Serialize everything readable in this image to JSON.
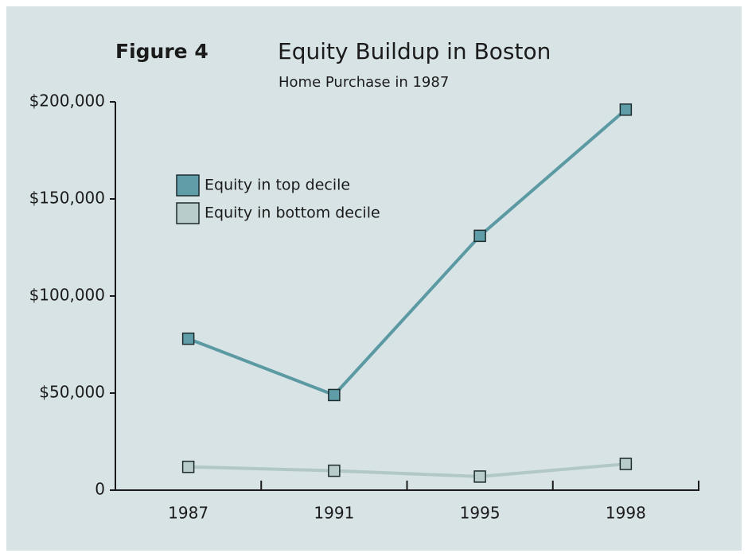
{
  "chart_data": {
    "type": "line",
    "figure_label": "Figure 4",
    "title": "Equity Buildup in Boston",
    "subtitle": "Home Purchase in 1987",
    "categories": [
      "1987",
      "1991",
      "1995",
      "1998"
    ],
    "series": [
      {
        "name": "Equity in top decile",
        "color": "#5f9ea8",
        "line_color": "#5b99a3",
        "values": [
          78000,
          49000,
          131000,
          196000
        ]
      },
      {
        "name": "Equity in bottom decile",
        "color": "#b8cccb",
        "line_color": "#b2c8c7",
        "values": [
          12000,
          10000,
          7000,
          13500
        ]
      }
    ],
    "ylim": [
      0,
      200000
    ],
    "yticks": [
      0,
      {
        "value": 50000,
        "label": "$50,000"
      },
      {
        "value": 100000,
        "label": "$100,000"
      },
      {
        "value": 150000,
        "label": "$150,000"
      },
      {
        "value": 200000,
        "label": "$200,000"
      }
    ],
    "legend": "upper left"
  }
}
